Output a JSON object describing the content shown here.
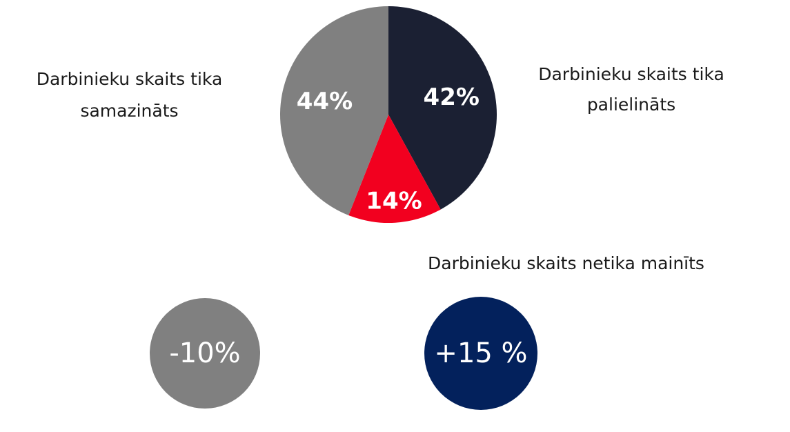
{
  "chart_data": {
    "type": "pie",
    "categories": [
      "Darbinieku skaits tika palielināts",
      "Darbinieku skaits netika mainīts",
      "Darbinieku skaits tika samazināts"
    ],
    "values": [
      42,
      14,
      44
    ],
    "value_labels": [
      "42%",
      "14%",
      "44%"
    ],
    "colors": [
      "#1b2033",
      "#f2001f",
      "#808080"
    ],
    "annotations": [
      {
        "text": "-10%",
        "color": "#808080"
      },
      {
        "text": "+15 %",
        "color": "#03215c"
      }
    ]
  }
}
